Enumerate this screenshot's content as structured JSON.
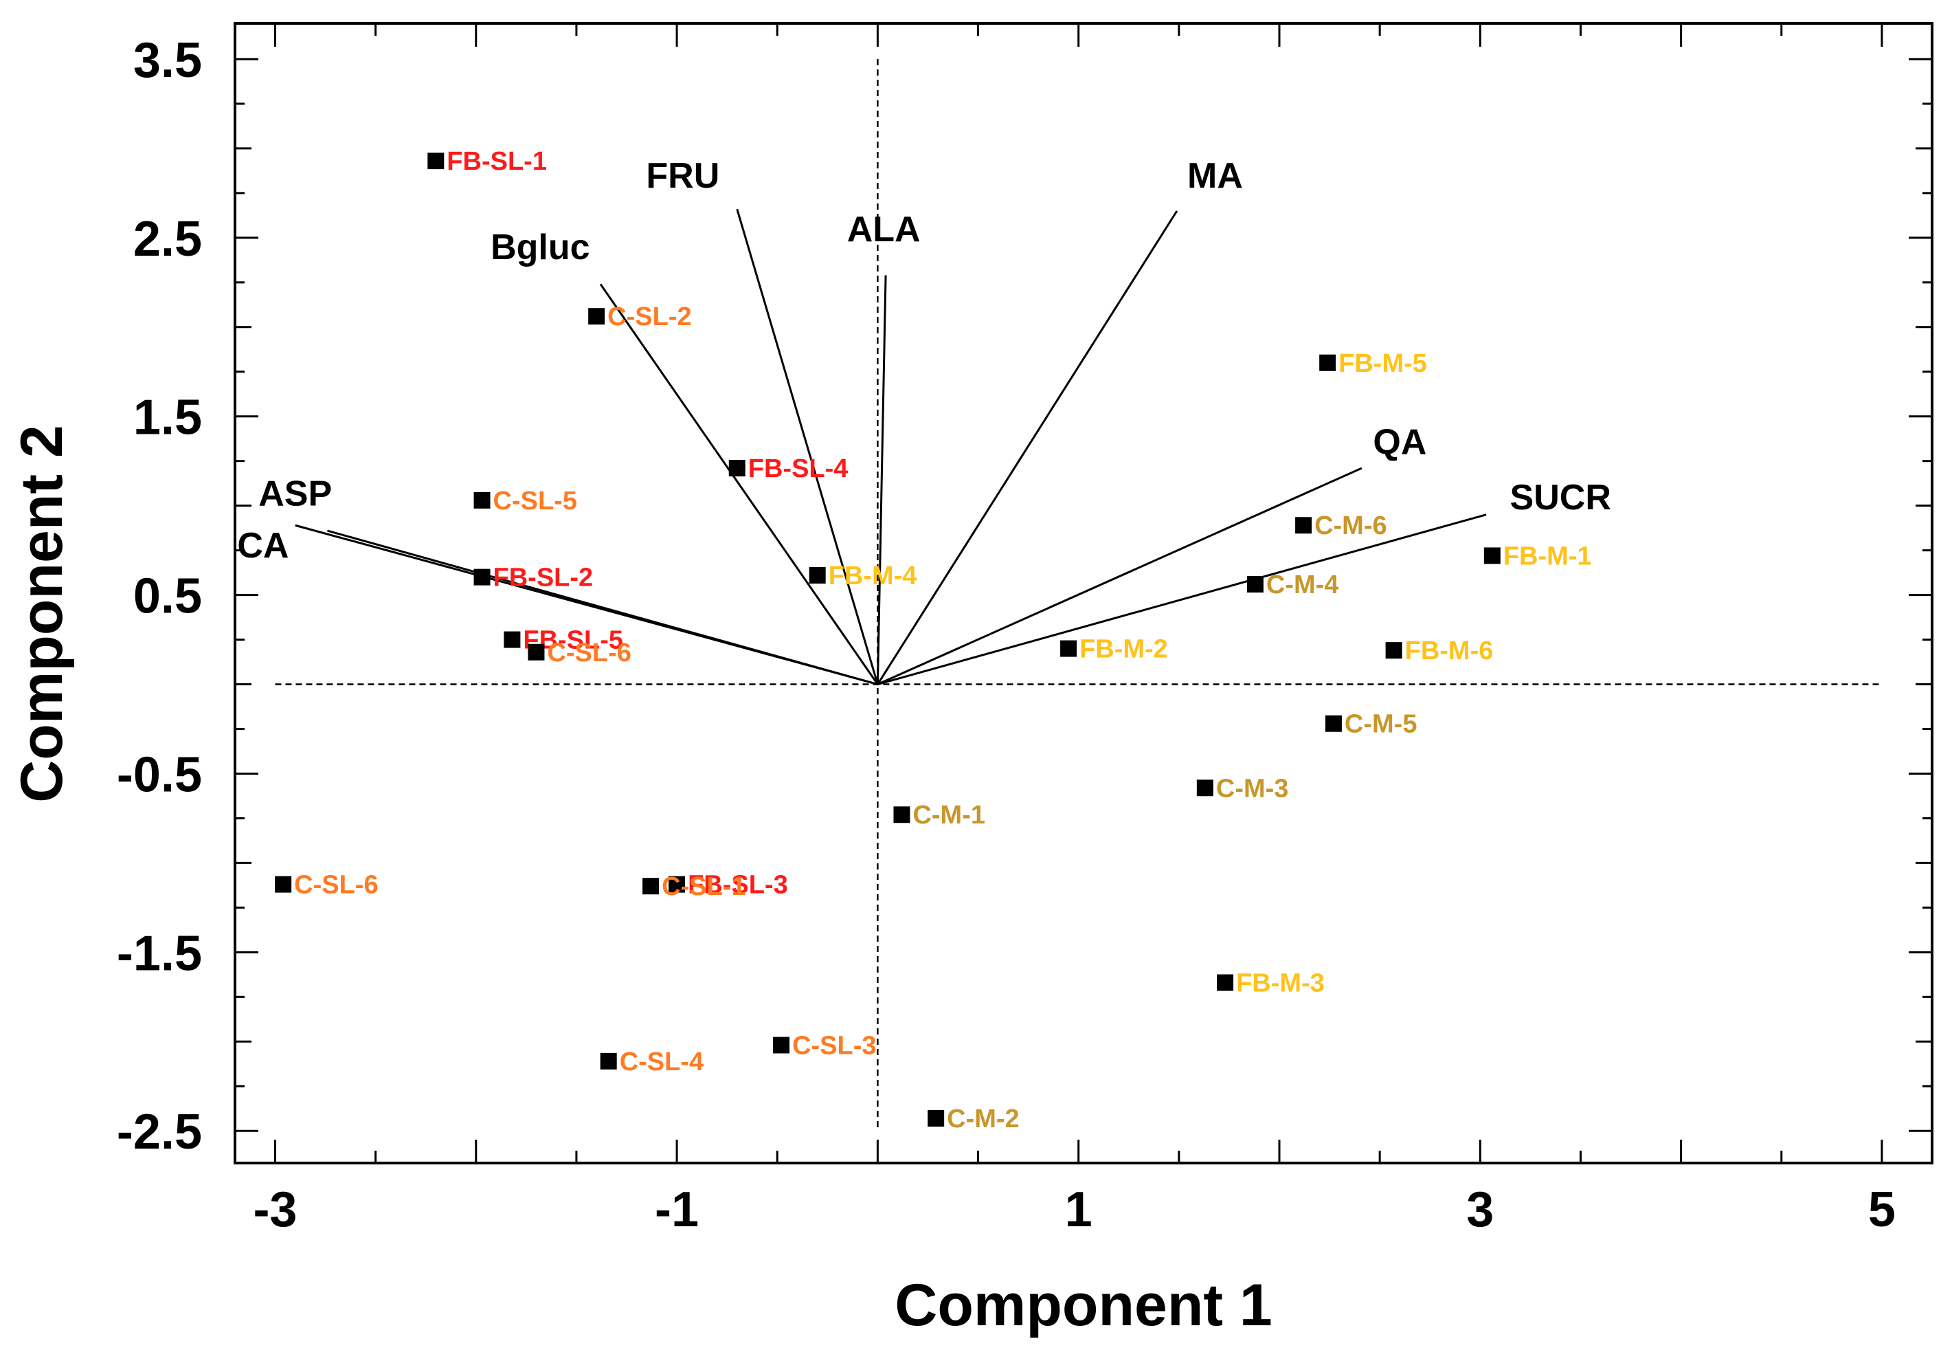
{
  "chart_data": {
    "type": "scatter",
    "subtype": "biplot",
    "title": "",
    "xlabel": "Component 1",
    "ylabel": "Component 2",
    "xlim": [
      -3.2,
      5.25
    ],
    "ylim": [
      -2.68,
      3.7
    ],
    "xticks": {
      "major": [
        -3,
        -1,
        1,
        3,
        5
      ],
      "labels": [
        "-3",
        "-1",
        "1",
        "3",
        "5"
      ],
      "minor_step": 0.5
    },
    "yticks": {
      "major": [
        3.5,
        2.5,
        1.5,
        0.5,
        -0.5,
        -1.5,
        -2.5
      ],
      "labels": [
        "3.5",
        "2.5",
        "1.5",
        "0.5",
        "-0.5",
        "-1.5",
        "-2.5"
      ],
      "minor_step": 0.5
    },
    "grid": false,
    "reference_lines": {
      "x": 0,
      "y": 0,
      "style": "dashed",
      "h_extent": [
        -3.0,
        5.0
      ],
      "v_extent": [
        -2.5,
        3.5
      ]
    },
    "colors": {
      "FB-SL": "#ff1a1a",
      "C-SL": "#ff7a22",
      "FB-M": "#ffc21a",
      "C-M": "#c8962a",
      "marker": "#000000",
      "vector": "#000000"
    },
    "series": [
      {
        "name": "FB-SL",
        "points": [
          {
            "label": "FB-SL-1",
            "x": -2.2,
            "y": 2.93
          },
          {
            "label": "FB-SL-2",
            "x": -1.97,
            "y": 0.6
          },
          {
            "label": "FB-SL-3",
            "x": -1.0,
            "y": -1.12
          },
          {
            "label": "FB-SL-4",
            "x": -0.7,
            "y": 1.21
          },
          {
            "label": "FB-SL-5",
            "x": -1.82,
            "y": 0.25
          }
        ]
      },
      {
        "name": "C-SL",
        "points": [
          {
            "label": "C-SL-1",
            "x": -1.13,
            "y": -1.13
          },
          {
            "label": "C-SL-2",
            "x": -1.4,
            "y": 2.06
          },
          {
            "label": "C-SL-3",
            "x": -0.48,
            "y": -2.02
          },
          {
            "label": "C-SL-4",
            "x": -1.34,
            "y": -2.11
          },
          {
            "label": "C-SL-5",
            "x": -1.97,
            "y": 1.03
          },
          {
            "label": "C-SL-6",
            "x": -2.96,
            "y": -1.12
          },
          {
            "label": "C-SL-6",
            "x": -1.7,
            "y": 0.18
          }
        ]
      },
      {
        "name": "FB-M",
        "points": [
          {
            "label": "FB-M-1",
            "x": 3.06,
            "y": 0.72
          },
          {
            "label": "FB-M-2",
            "x": 0.95,
            "y": 0.2
          },
          {
            "label": "FB-M-3",
            "x": 1.73,
            "y": -1.67
          },
          {
            "label": "FB-M-4",
            "x": -0.3,
            "y": 0.61
          },
          {
            "label": "FB-M-5",
            "x": 2.24,
            "y": 1.8
          },
          {
            "label": "FB-M-6",
            "x": 2.57,
            "y": 0.19
          }
        ]
      },
      {
        "name": "C-M",
        "points": [
          {
            "label": "C-M-1",
            "x": 0.12,
            "y": -0.73
          },
          {
            "label": "C-M-2",
            "x": 0.29,
            "y": -2.43
          },
          {
            "label": "C-M-3",
            "x": 1.63,
            "y": -0.58
          },
          {
            "label": "C-M-4",
            "x": 1.88,
            "y": 0.56
          },
          {
            "label": "C-M-5",
            "x": 2.27,
            "y": -0.22
          },
          {
            "label": "C-M-6",
            "x": 2.12,
            "y": 0.89
          }
        ]
      }
    ],
    "loadings": [
      {
        "name": "FRU",
        "x": -0.7,
        "y": 2.66,
        "label_x": -0.97,
        "label_y": 2.78
      },
      {
        "name": "ALA",
        "x": 0.04,
        "y": 2.29,
        "label_x": 0.03,
        "label_y": 2.48
      },
      {
        "name": "MA",
        "x": 1.49,
        "y": 2.65,
        "label_x": 1.68,
        "label_y": 2.78
      },
      {
        "name": "Bgluc",
        "x": -1.38,
        "y": 2.24,
        "label_x": -1.68,
        "label_y": 2.38
      },
      {
        "name": "QA",
        "x": 2.41,
        "y": 1.21,
        "label_x": 2.6,
        "label_y": 1.29
      },
      {
        "name": "SUCR",
        "x": 3.03,
        "y": 0.95,
        "label_x": 3.4,
        "label_y": 0.98
      },
      {
        "name": "ASP",
        "x": -2.74,
        "y": 0.86,
        "label_x": -2.9,
        "label_y": 1.0
      },
      {
        "name": "CA",
        "x": -2.9,
        "y": 0.89,
        "label_x": -3.06,
        "label_y": 0.71
      }
    ]
  }
}
